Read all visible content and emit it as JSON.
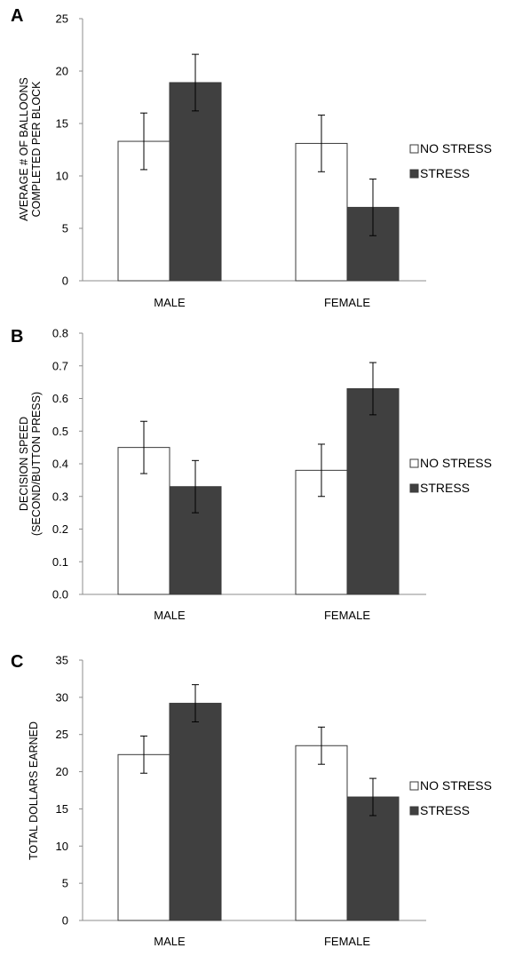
{
  "chart_data": [
    {
      "panel_label": "A",
      "type": "bar",
      "categories": [
        "MALE",
        "FEMALE"
      ],
      "series": [
        {
          "name": "NO STRESS",
          "values": [
            13.3,
            13.1
          ],
          "errors": [
            2.7,
            2.7
          ],
          "color": "#ffffff"
        },
        {
          "name": "STRESS",
          "values": [
            18.9,
            7.0
          ],
          "errors": [
            2.7,
            2.7
          ],
          "color": "#404040"
        }
      ],
      "ylabel_lines": [
        "AVERAGE # OF BALLOONS",
        "COMPLETED PER BLOCK"
      ],
      "ylim": [
        0,
        25
      ],
      "yticks": [
        "0",
        "5",
        "10",
        "15",
        "20",
        "25"
      ],
      "legend_position": "right"
    },
    {
      "panel_label": "B",
      "type": "bar",
      "categories": [
        "MALE",
        "FEMALE"
      ],
      "series": [
        {
          "name": "NO STRESS",
          "values": [
            0.45,
            0.38
          ],
          "errors": [
            0.08,
            0.08
          ],
          "color": "#ffffff"
        },
        {
          "name": "STRESS",
          "values": [
            0.33,
            0.63
          ],
          "errors": [
            0.08,
            0.08
          ],
          "color": "#404040"
        }
      ],
      "ylabel_lines": [
        "DECISION SPEED",
        "(SECOND/BUTTON PRESS)"
      ],
      "ylim": [
        0,
        0.8
      ],
      "yticks": [
        "0.0",
        "0.1",
        "0.2",
        "0.3",
        "0.4",
        "0.5",
        "0.6",
        "0.7",
        "0.8"
      ],
      "legend_position": "right"
    },
    {
      "panel_label": "C",
      "type": "bar",
      "categories": [
        "MALE",
        "FEMALE"
      ],
      "series": [
        {
          "name": "NO STRESS",
          "values": [
            22.3,
            23.5
          ],
          "errors": [
            2.5,
            2.5
          ],
          "color": "#ffffff"
        },
        {
          "name": "STRESS",
          "values": [
            29.2,
            16.6
          ],
          "errors": [
            2.5,
            2.5
          ],
          "color": "#404040"
        }
      ],
      "ylabel_lines": [
        "TOTAL DOLLARS EARNED"
      ],
      "ylim": [
        0,
        35
      ],
      "yticks": [
        "0",
        "5",
        "10",
        "15",
        "20",
        "25",
        "30",
        "35"
      ],
      "legend_position": "right"
    }
  ]
}
